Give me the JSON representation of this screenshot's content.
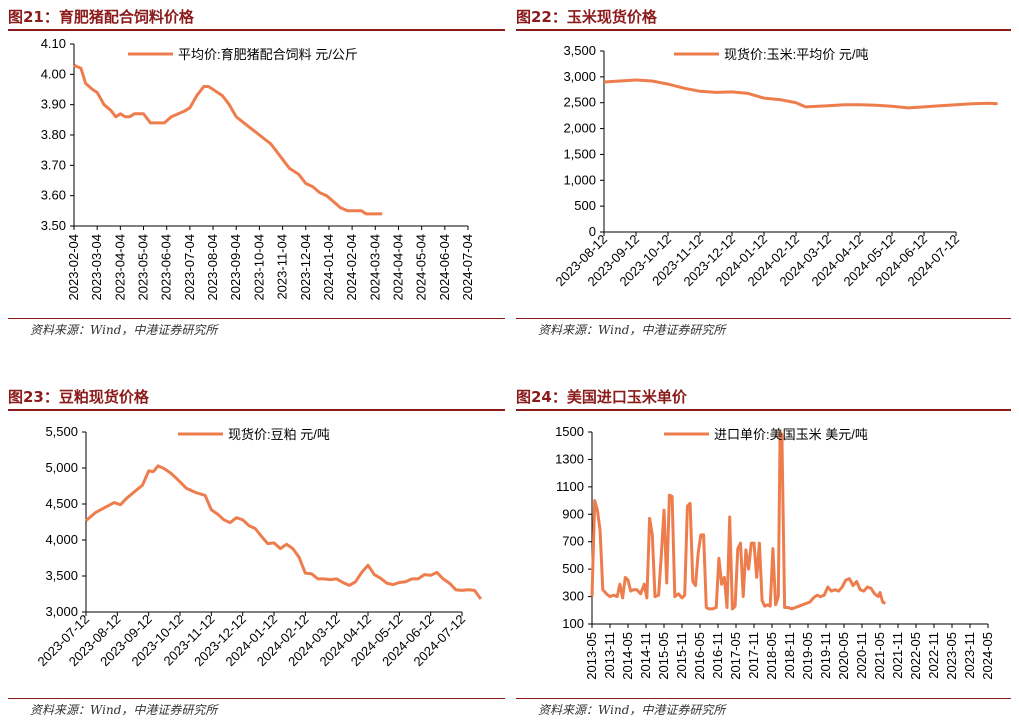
{
  "source_text": "资料来源：Wind，中港证券研究所",
  "series_color": "#ee7d4d",
  "title_color": "#8b1a1a",
  "panels": [
    {
      "title": "图21：育肥猪配合饲料价格"
    },
    {
      "title": "图22：玉米现货价格"
    },
    {
      "title": "图23：豆粕现货价格"
    },
    {
      "title": "图24：美国进口玉米单价"
    }
  ],
  "chart_data": [
    {
      "type": "line",
      "legend": "平均价:育肥猪配合饲料 元/公斤",
      "legend_position": "top",
      "ylim": [
        3.5,
        4.1
      ],
      "y_ticks": [
        "4.10",
        "4.00",
        "3.90",
        "3.80",
        "3.70",
        "3.60",
        "3.50"
      ],
      "x_ticks": [
        "2023-02-04",
        "2023-03-04",
        "2023-04-04",
        "2023-05-04",
        "2023-06-04",
        "2023-07-04",
        "2023-08-04",
        "2023-09-04",
        "2023-10-04",
        "2023-11-04",
        "2023-12-04",
        "2024-01-04",
        "2024-02-04",
        "2024-03-04",
        "2024-04-04",
        "2024-05-04",
        "2024-06-04",
        "2024-07-04"
      ],
      "series": [
        {
          "values": [
            [
              0,
              4.03
            ],
            [
              0.3,
              4.02
            ],
            [
              0.5,
              3.97
            ],
            [
              0.8,
              3.95
            ],
            [
              1.0,
              3.94
            ],
            [
              1.3,
              3.9
            ],
            [
              1.6,
              3.88
            ],
            [
              1.8,
              3.86
            ],
            [
              2.0,
              3.87
            ],
            [
              2.2,
              3.86
            ],
            [
              2.4,
              3.86
            ],
            [
              2.6,
              3.87
            ],
            [
              2.8,
              3.87
            ],
            [
              3.0,
              3.87
            ],
            [
              3.3,
              3.84
            ],
            [
              3.6,
              3.84
            ],
            [
              3.9,
              3.84
            ],
            [
              4.2,
              3.86
            ],
            [
              4.5,
              3.87
            ],
            [
              4.8,
              3.88
            ],
            [
              5.0,
              3.89
            ],
            [
              5.3,
              3.93
            ],
            [
              5.6,
              3.96
            ],
            [
              5.8,
              3.96
            ],
            [
              6.0,
              3.95
            ],
            [
              6.4,
              3.93
            ],
            [
              6.7,
              3.9
            ],
            [
              7.0,
              3.86
            ],
            [
              7.5,
              3.83
            ],
            [
              8.0,
              3.8
            ],
            [
              8.5,
              3.77
            ],
            [
              9.0,
              3.72
            ],
            [
              9.3,
              3.69
            ],
            [
              9.7,
              3.67
            ],
            [
              10.0,
              3.64
            ],
            [
              10.3,
              3.63
            ],
            [
              10.6,
              3.61
            ],
            [
              10.9,
              3.6
            ],
            [
              11.2,
              3.58
            ],
            [
              11.5,
              3.56
            ],
            [
              11.8,
              3.55
            ],
            [
              12.1,
              3.55
            ],
            [
              12.4,
              3.55
            ],
            [
              12.6,
              3.54
            ],
            [
              13.0,
              3.54
            ],
            [
              13.3,
              3.54
            ]
          ]
        }
      ]
    },
    {
      "type": "line",
      "legend": "现货价:玉米:平均价 元/吨",
      "legend_position": "top",
      "ylim": [
        0,
        3500
      ],
      "y_ticks": [
        "3,500",
        "3,000",
        "2,500",
        "2,000",
        "1,500",
        "1,000",
        "500",
        "0"
      ],
      "x_ticks": [
        "2023-08-12",
        "2023-09-12",
        "2023-10-12",
        "2023-11-12",
        "2023-12-12",
        "2024-01-12",
        "2024-02-12",
        "2024-03-12",
        "2024-04-12",
        "2024-05-12",
        "2024-06-12",
        "2024-07-12"
      ],
      "series": [
        {
          "values": [
            [
              0,
              2900
            ],
            [
              0.5,
              2920
            ],
            [
              1.0,
              2940
            ],
            [
              1.5,
              2920
            ],
            [
              2.0,
              2860
            ],
            [
              2.5,
              2780
            ],
            [
              3.0,
              2720
            ],
            [
              3.5,
              2700
            ],
            [
              4.0,
              2710
            ],
            [
              4.5,
              2680
            ],
            [
              5.0,
              2590
            ],
            [
              5.5,
              2560
            ],
            [
              6.0,
              2500
            ],
            [
              6.3,
              2420
            ],
            [
              6.7,
              2430
            ],
            [
              7.0,
              2440
            ],
            [
              7.5,
              2460
            ],
            [
              8.0,
              2460
            ],
            [
              8.5,
              2450
            ],
            [
              9.0,
              2430
            ],
            [
              9.5,
              2400
            ],
            [
              10.0,
              2420
            ],
            [
              10.5,
              2440
            ],
            [
              11.0,
              2460
            ],
            [
              11.5,
              2480
            ],
            [
              12.0,
              2490
            ],
            [
              12.3,
              2480
            ]
          ]
        }
      ]
    },
    {
      "type": "line",
      "legend": "现货价:豆粕 元/吨",
      "legend_position": "top",
      "ylim": [
        3000,
        5500
      ],
      "y_ticks": [
        "5,500",
        "5,000",
        "4,500",
        "4,000",
        "3,500",
        "3,000"
      ],
      "x_ticks": [
        "2023-07-12",
        "2023-08-12",
        "2023-09-12",
        "2023-10-12",
        "2023-11-12",
        "2023-12-12",
        "2024-01-12",
        "2024-02-12",
        "2024-03-12",
        "2024-04-12",
        "2024-05-12",
        "2024-06-12",
        "2024-07-12"
      ],
      "series": [
        {
          "values": [
            [
              0,
              4270
            ],
            [
              0.3,
              4380
            ],
            [
              0.6,
              4450
            ],
            [
              0.9,
              4520
            ],
            [
              1.1,
              4490
            ],
            [
              1.3,
              4580
            ],
            [
              1.6,
              4690
            ],
            [
              1.8,
              4760
            ],
            [
              2.0,
              4960
            ],
            [
              2.15,
              4950
            ],
            [
              2.3,
              5030
            ],
            [
              2.5,
              4990
            ],
            [
              2.7,
              4930
            ],
            [
              2.9,
              4850
            ],
            [
              3.2,
              4720
            ],
            [
              3.5,
              4660
            ],
            [
              3.8,
              4620
            ],
            [
              4.0,
              4420
            ],
            [
              4.2,
              4360
            ],
            [
              4.4,
              4280
            ],
            [
              4.6,
              4240
            ],
            [
              4.8,
              4310
            ],
            [
              5.0,
              4280
            ],
            [
              5.2,
              4200
            ],
            [
              5.4,
              4160
            ],
            [
              5.6,
              4050
            ],
            [
              5.8,
              3950
            ],
            [
              6.0,
              3960
            ],
            [
              6.2,
              3880
            ],
            [
              6.4,
              3940
            ],
            [
              6.6,
              3880
            ],
            [
              6.8,
              3760
            ],
            [
              7.0,
              3540
            ],
            [
              7.2,
              3530
            ],
            [
              7.4,
              3460
            ],
            [
              7.6,
              3460
            ],
            [
              7.8,
              3450
            ],
            [
              8.0,
              3460
            ],
            [
              8.2,
              3410
            ],
            [
              8.4,
              3370
            ],
            [
              8.6,
              3420
            ],
            [
              8.8,
              3550
            ],
            [
              9.0,
              3650
            ],
            [
              9.2,
              3520
            ],
            [
              9.4,
              3470
            ],
            [
              9.6,
              3400
            ],
            [
              9.8,
              3380
            ],
            [
              10.0,
              3410
            ],
            [
              10.2,
              3420
            ],
            [
              10.4,
              3460
            ],
            [
              10.6,
              3460
            ],
            [
              10.8,
              3520
            ],
            [
              11.0,
              3510
            ],
            [
              11.2,
              3550
            ],
            [
              11.4,
              3460
            ],
            [
              11.6,
              3400
            ],
            [
              11.8,
              3310
            ],
            [
              12.0,
              3300
            ],
            [
              12.2,
              3310
            ],
            [
              12.4,
              3300
            ],
            [
              12.6,
              3180
            ]
          ]
        }
      ]
    },
    {
      "type": "line",
      "legend": "进口单价:美国玉米 美元/吨",
      "legend_position": "top",
      "ylim": [
        100,
        1500
      ],
      "y_ticks": [
        "1500",
        "1300",
        "1100",
        "900",
        "700",
        "500",
        "300",
        "100"
      ],
      "x_ticks": [
        "2013-05",
        "2013-11",
        "2014-05",
        "2014-11",
        "2015-05",
        "2015-11",
        "2016-05",
        "2016-11",
        "2017-05",
        "2017-11",
        "2018-05",
        "2018-11",
        "2019-05",
        "2019-11",
        "2020-05",
        "2020-11",
        "2021-05",
        "2021-11",
        "2022-05",
        "2022-11",
        "2023-05",
        "2023-11",
        "2024-05"
      ],
      "series": [
        {
          "values": [
            [
              0,
              300
            ],
            [
              0.15,
              1000
            ],
            [
              0.3,
              930
            ],
            [
              0.45,
              780
            ],
            [
              0.6,
              350
            ],
            [
              0.8,
              320
            ],
            [
              1.0,
              300
            ],
            [
              1.2,
              310
            ],
            [
              1.4,
              300
            ],
            [
              1.55,
              390
            ],
            [
              1.7,
              290
            ],
            [
              1.85,
              440
            ],
            [
              2.0,
              420
            ],
            [
              2.15,
              340
            ],
            [
              2.3,
              350
            ],
            [
              2.5,
              350
            ],
            [
              2.7,
              320
            ],
            [
              2.9,
              390
            ],
            [
              3.05,
              290
            ],
            [
              3.2,
              870
            ],
            [
              3.35,
              750
            ],
            [
              3.5,
              300
            ],
            [
              3.7,
              310
            ],
            [
              3.85,
              600
            ],
            [
              4.0,
              930
            ],
            [
              4.15,
              400
            ],
            [
              4.3,
              1040
            ],
            [
              4.45,
              1030
            ],
            [
              4.6,
              300
            ],
            [
              4.8,
              320
            ],
            [
              5.0,
              290
            ],
            [
              5.15,
              310
            ],
            [
              5.3,
              960
            ],
            [
              5.45,
              980
            ],
            [
              5.6,
              410
            ],
            [
              5.75,
              380
            ],
            [
              5.9,
              620
            ],
            [
              6.05,
              750
            ],
            [
              6.2,
              750
            ],
            [
              6.35,
              220
            ],
            [
              6.5,
              210
            ],
            [
              6.7,
              210
            ],
            [
              6.9,
              220
            ],
            [
              7.05,
              580
            ],
            [
              7.2,
              390
            ],
            [
              7.35,
              440
            ],
            [
              7.5,
              220
            ],
            [
              7.65,
              880
            ],
            [
              7.8,
              210
            ],
            [
              7.95,
              230
            ],
            [
              8.1,
              650
            ],
            [
              8.25,
              690
            ],
            [
              8.4,
              300
            ],
            [
              8.55,
              640
            ],
            [
              8.7,
              500
            ],
            [
              8.85,
              690
            ],
            [
              9.0,
              690
            ],
            [
              9.15,
              440
            ],
            [
              9.3,
              690
            ],
            [
              9.45,
              270
            ],
            [
              9.6,
              230
            ],
            [
              9.75,
              240
            ],
            [
              9.9,
              230
            ],
            [
              10.05,
              650
            ],
            [
              10.2,
              240
            ],
            [
              10.35,
              300
            ],
            [
              10.45,
              1500
            ],
            [
              10.55,
              1480
            ],
            [
              10.7,
              220
            ],
            [
              10.9,
              220
            ],
            [
              11.1,
              210
            ],
            [
              11.3,
              220
            ],
            [
              11.5,
              230
            ],
            [
              11.7,
              240
            ],
            [
              11.9,
              250
            ],
            [
              12.1,
              260
            ],
            [
              12.3,
              290
            ],
            [
              12.5,
              310
            ],
            [
              12.7,
              300
            ],
            [
              12.9,
              310
            ],
            [
              13.1,
              370
            ],
            [
              13.3,
              340
            ],
            [
              13.5,
              350
            ],
            [
              13.7,
              340
            ],
            [
              13.9,
              370
            ],
            [
              14.1,
              420
            ],
            [
              14.3,
              430
            ],
            [
              14.5,
              380
            ],
            [
              14.7,
              410
            ],
            [
              14.9,
              350
            ],
            [
              15.1,
              340
            ],
            [
              15.3,
              370
            ],
            [
              15.5,
              360
            ],
            [
              15.7,
              320
            ],
            [
              15.9,
              300
            ],
            [
              16.0,
              330
            ],
            [
              16.15,
              260
            ],
            [
              16.3,
              250
            ]
          ]
        }
      ]
    }
  ]
}
